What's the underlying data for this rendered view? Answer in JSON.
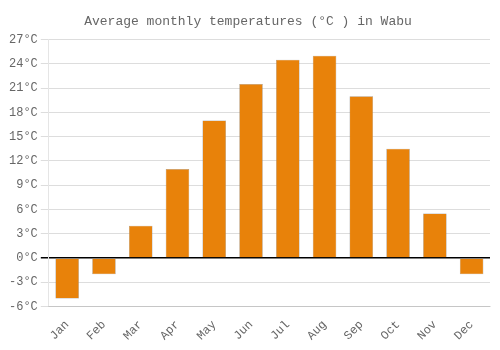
{
  "chart_data": {
    "type": "bar",
    "title": "Average monthly temperatures (°C ) in Wabu",
    "categories": [
      "Jan",
      "Feb",
      "Mar",
      "Apr",
      "May",
      "Jun",
      "Jul",
      "Aug",
      "Sep",
      "Oct",
      "Nov",
      "Dec"
    ],
    "values": [
      -5.0,
      -2.0,
      4.0,
      11.0,
      17.0,
      21.5,
      24.5,
      25.0,
      20.0,
      13.5,
      5.5,
      -2.0
    ],
    "color": "#E8820A",
    "ylim": [
      -6,
      27
    ],
    "yticks": [
      {
        "value": -6,
        "label": "-6°C"
      },
      {
        "value": -3,
        "label": "-3°C"
      },
      {
        "value": 0,
        "label": "0°C"
      },
      {
        "value": 3,
        "label": "3°C"
      },
      {
        "value": 6,
        "label": "6°C"
      },
      {
        "value": 9,
        "label": "9°C"
      },
      {
        "value": 12,
        "label": "12°C"
      },
      {
        "value": 15,
        "label": "15°C"
      },
      {
        "value": 18,
        "label": "18°C"
      },
      {
        "value": 21,
        "label": "21°C"
      },
      {
        "value": 24,
        "label": "24°C"
      },
      {
        "value": 27,
        "label": "27°C"
      }
    ],
    "grid": true
  }
}
